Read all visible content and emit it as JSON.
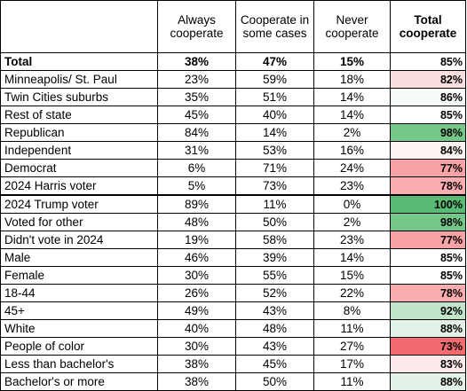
{
  "headers": {
    "corner": "",
    "always": "Always cooperate",
    "some": "Cooperate in some cases",
    "never": "Never cooperate",
    "total": "Total cooperate"
  },
  "rows": [
    {
      "label": "Total",
      "always": "38%",
      "some": "47%",
      "never": "15%",
      "total": "85%",
      "color": "#ffffff",
      "bold": true
    },
    {
      "label": "Minneapolis/ St. Paul",
      "always": "23%",
      "some": "59%",
      "never": "18%",
      "total": "82%",
      "color": "#fbdede"
    },
    {
      "label": "Twin Cities suburbs",
      "always": "35%",
      "some": "51%",
      "never": "14%",
      "total": "86%",
      "color": "#f7fbf7"
    },
    {
      "label": "Rest of state",
      "always": "45%",
      "some": "40%",
      "never": "14%",
      "total": "85%",
      "color": "#ffffff"
    },
    {
      "label": "Republican",
      "always": "84%",
      "some": "14%",
      "never": "2%",
      "total": "98%",
      "color": "#76c78a"
    },
    {
      "label": "Independent",
      "always": "31%",
      "some": "53%",
      "never": "16%",
      "total": "84%",
      "color": "#fdf3f3"
    },
    {
      "label": "Democrat",
      "always": "6%",
      "some": "71%",
      "never": "24%",
      "total": "77%",
      "color": "#f7a2a4"
    },
    {
      "label": "2024 Harris voter",
      "always": "5%",
      "some": "73%",
      "never": "23%",
      "total": "78%",
      "color": "#f8acae"
    },
    {
      "label": "2024 Trump voter",
      "always": "89%",
      "some": "11%",
      "never": "0%",
      "total": "100%",
      "color": "#5bbb74",
      "thick": true
    },
    {
      "label": "Voted for other",
      "always": "48%",
      "some": "50%",
      "never": "2%",
      "total": "98%",
      "color": "#76c78a"
    },
    {
      "label": "Didn't vote in 2024",
      "always": "19%",
      "some": "58%",
      "never": "23%",
      "total": "77%",
      "color": "#f7a2a4"
    },
    {
      "label": "Male",
      "always": "46%",
      "some": "39%",
      "never": "14%",
      "total": "85%",
      "color": "#ffffff"
    },
    {
      "label": "Female",
      "always": "30%",
      "some": "55%",
      "never": "15%",
      "total": "85%",
      "color": "#ffffff"
    },
    {
      "label": "18-44",
      "always": "26%",
      "some": "52%",
      "never": "22%",
      "total": "78%",
      "color": "#f8acae"
    },
    {
      "label": "45+",
      "always": "49%",
      "some": "43%",
      "never": "8%",
      "total": "92%",
      "color": "#c3e5cb"
    },
    {
      "label": "White",
      "always": "40%",
      "some": "48%",
      "never": "11%",
      "total": "88%",
      "color": "#e3f2e6"
    },
    {
      "label": "People of color",
      "always": "30%",
      "some": "43%",
      "never": "27%",
      "total": "73%",
      "color": "#f26b6e"
    },
    {
      "label": "Less than bachelor's",
      "always": "38%",
      "some": "45%",
      "never": "17%",
      "total": "83%",
      "color": "#fce9e9"
    },
    {
      "label": "Bachelor's or more",
      "always": "38%",
      "some": "50%",
      "never": "11%",
      "total": "88%",
      "color": "#e3f2e6"
    }
  ]
}
